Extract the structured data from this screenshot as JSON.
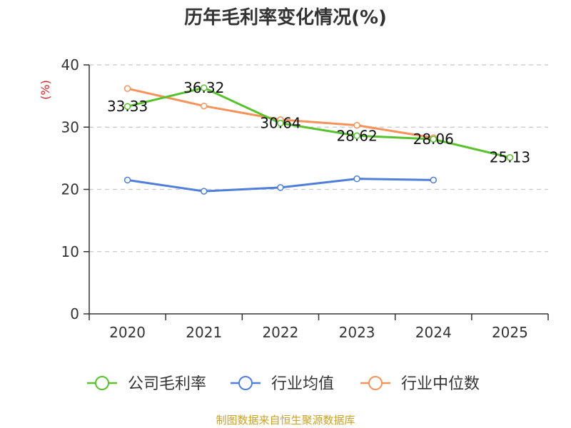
{
  "chart_data": {
    "type": "line",
    "title": "历年毛利率变化情况(%)",
    "ylabel": "(%)",
    "xlabel": "",
    "categories": [
      "2020",
      "2021",
      "2022",
      "2023",
      "2024",
      "2025"
    ],
    "ylim": [
      0,
      40
    ],
    "yticks": [
      0,
      10,
      20,
      30,
      40
    ],
    "grid": true,
    "legend_position": "bottom",
    "series": [
      {
        "name": "公司毛利率",
        "color": "#5ac12e",
        "values": [
          33.33,
          36.32,
          30.64,
          28.62,
          28.06,
          25.13
        ],
        "labels": [
          "33.33",
          "36.32",
          "30.64",
          "28.62",
          "28.06",
          "25.13"
        ]
      },
      {
        "name": "行业均值",
        "color": "#4f7fd9",
        "values": [
          21.5,
          19.7,
          20.3,
          21.7,
          21.5,
          null
        ]
      },
      {
        "name": "行业中位数",
        "color": "#f5935a",
        "values": [
          36.2,
          33.4,
          31.2,
          30.3,
          28.3,
          null
        ]
      }
    ],
    "source": "制图数据来自恒生聚源数据库"
  },
  "colors": {
    "axis": "#333333",
    "grid": "#c8c8c8",
    "ylabel": "#e02020"
  }
}
